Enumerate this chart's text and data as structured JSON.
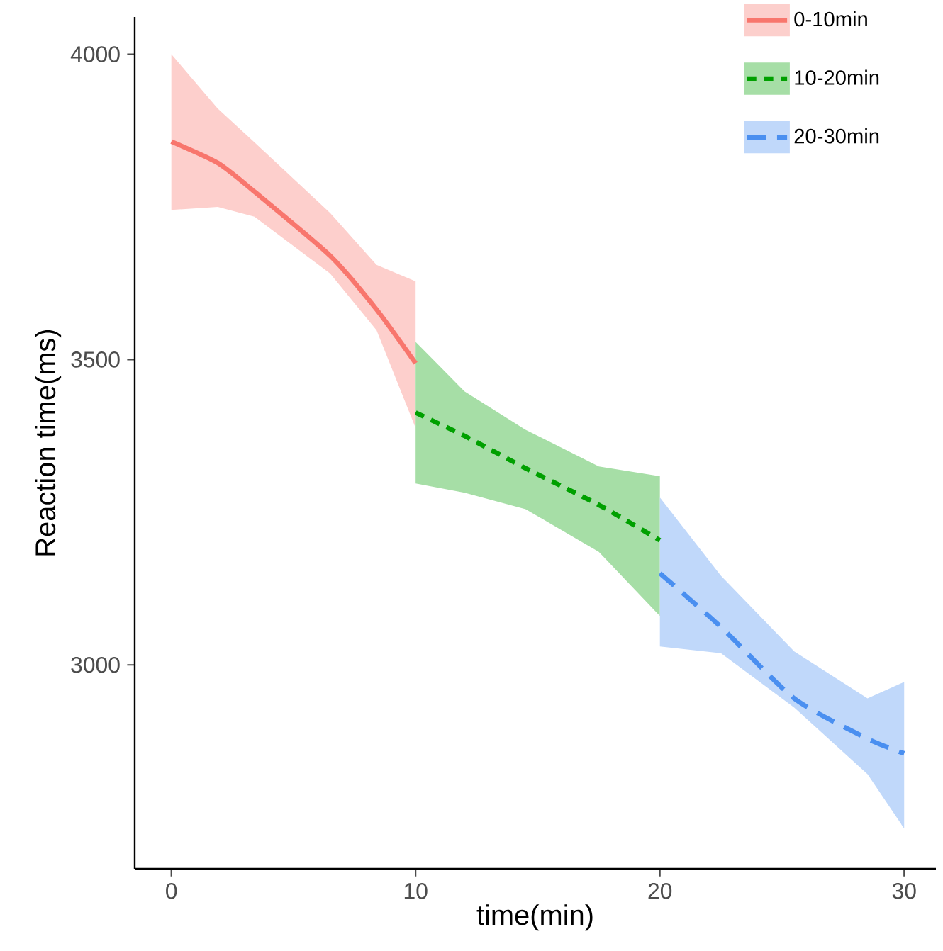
{
  "chart_data": {
    "type": "line",
    "xlabel": "time(min)",
    "ylabel": "Reaction time(ms)",
    "xlim": [
      -1.5,
      31.3
    ],
    "ylim": [
      2666,
      4061
    ],
    "xticks": [
      0,
      10,
      20,
      30
    ],
    "yticks": [
      3000,
      3500,
      4000
    ],
    "grid": false,
    "legend": "top right",
    "series": [
      {
        "name": "0-10min",
        "color": "#f8766d",
        "line_style": "solid",
        "x": [
          0,
          1.9,
          3.4,
          6.5,
          8.4,
          10
        ],
        "values": [
          3857,
          3822,
          3775,
          3670,
          3582,
          3494
        ],
        "lower": [
          3745,
          3750,
          3734,
          3641,
          3548,
          3388
        ],
        "upper": [
          4000,
          3911,
          3856,
          3740,
          3655,
          3628
        ]
      },
      {
        "name": "10-20min",
        "color": "#00a000",
        "line_style": "dotted",
        "x": [
          10,
          12,
          14.5,
          17.5,
          20
        ],
        "values": [
          3413,
          3375,
          3322,
          3262,
          3204
        ],
        "lower": [
          3297,
          3282,
          3255,
          3185,
          3080
        ],
        "upper": [
          3529,
          3448,
          3385,
          3325,
          3309
        ]
      },
      {
        "name": "20-30min",
        "color": "#4a8ff0",
        "line_style": "dashed",
        "x": [
          20,
          22.5,
          25.5,
          28.5,
          30
        ],
        "values": [
          3150,
          3062,
          2945,
          2879,
          2855
        ],
        "lower": [
          3030,
          3019,
          2930,
          2821,
          2732
        ],
        "upper": [
          3274,
          3146,
          3022,
          2945,
          2972
        ]
      }
    ]
  }
}
